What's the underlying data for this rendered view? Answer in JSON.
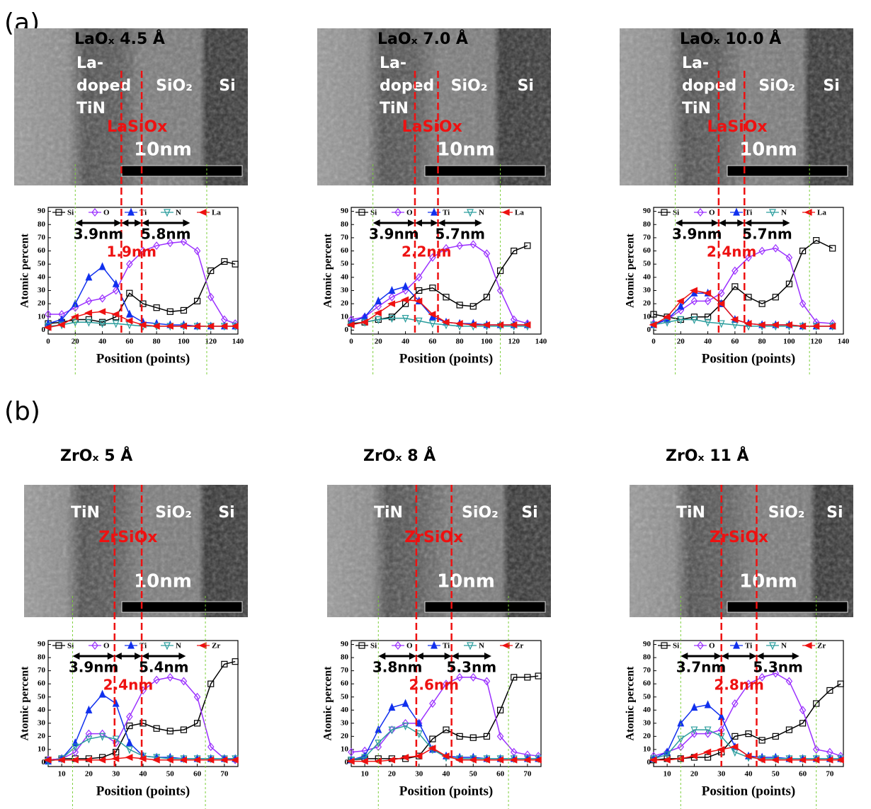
{
  "panels": [
    "(a)",
    "(b)"
  ],
  "chart_data": [
    {
      "type": "line",
      "title": "LaOₓ 4.5 Å",
      "xlabel": "Position (points)",
      "ylabel": "Atomic percent",
      "xlim": [
        0,
        140
      ],
      "xticks": [
        0,
        20,
        40,
        60,
        80,
        100,
        120,
        140
      ],
      "ylim": [
        -3,
        93
      ],
      "yticks": [
        0,
        10,
        20,
        30,
        40,
        50,
        60,
        70,
        80,
        90
      ],
      "image": {
        "metal": [
          "La-",
          "doped",
          "TiN"
        ],
        "oxide": "SiO₂",
        "substrate": "Si",
        "interlayer": "LaSiOx",
        "scale_bar": "10nm"
      },
      "interface_lines": [
        54,
        69
      ],
      "region_lines": [
        20,
        117
      ],
      "dims": [
        "3.9nm",
        "5.8nm"
      ],
      "interlayer_thickness": "1.9nm",
      "x": [
        0,
        10,
        20,
        30,
        40,
        50,
        60,
        70,
        80,
        90,
        100,
        110,
        120,
        130,
        138
      ],
      "series": [
        {
          "name": "Si",
          "color": "#000000",
          "marker": "square",
          "values": [
            5,
            6,
            8,
            8,
            6,
            10,
            28,
            20,
            17,
            14,
            15,
            22,
            45,
            52,
            50
          ]
        },
        {
          "name": "O",
          "color": "#9b30ff",
          "marker": "diamond",
          "values": [
            12,
            12,
            17,
            22,
            24,
            30,
            50,
            60,
            64,
            66,
            67,
            60,
            25,
            8,
            5
          ]
        },
        {
          "name": "Ti",
          "color": "#1030ee",
          "marker": "triangle-up",
          "values": [
            5,
            8,
            20,
            40,
            48,
            35,
            12,
            6,
            5,
            4,
            4,
            3,
            3,
            3,
            3
          ]
        },
        {
          "name": "N",
          "color": "#2a9d9d",
          "marker": "triangle-down",
          "values": [
            3,
            4,
            6,
            6,
            5,
            5,
            4,
            3,
            3,
            3,
            3,
            3,
            3,
            3,
            3
          ]
        },
        {
          "name": "La",
          "color": "#ee1111",
          "marker": "triangle-left",
          "values": [
            2,
            4,
            10,
            13,
            14,
            12,
            7,
            4,
            3,
            3,
            3,
            3,
            3,
            3,
            3
          ]
        }
      ]
    },
    {
      "type": "line",
      "title": "LaOₓ 7.0 Å",
      "xlabel": "Position (points)",
      "ylabel": "Atomic percent",
      "xlim": [
        0,
        140
      ],
      "xticks": [
        0,
        20,
        40,
        60,
        80,
        100,
        120,
        140
      ],
      "ylim": [
        -3,
        93
      ],
      "yticks": [
        0,
        10,
        20,
        30,
        40,
        50,
        60,
        70,
        80,
        90
      ],
      "image": {
        "metal": [
          "La-",
          "doped",
          "TiN"
        ],
        "oxide": "SiO₂",
        "substrate": "Si",
        "interlayer": "LaSiOx",
        "scale_bar": "10nm"
      },
      "interface_lines": [
        47,
        64
      ],
      "region_lines": [
        16,
        110
      ],
      "dims": [
        "3.9nm",
        "5.7nm"
      ],
      "interlayer_thickness": "2.2nm",
      "x": [
        0,
        10,
        20,
        30,
        40,
        50,
        60,
        70,
        80,
        90,
        100,
        110,
        120,
        130
      ],
      "series": [
        {
          "name": "Si",
          "color": "#000000",
          "marker": "square",
          "values": [
            5,
            6,
            8,
            10,
            20,
            30,
            32,
            25,
            19,
            18,
            25,
            45,
            60,
            64
          ]
        },
        {
          "name": "O",
          "color": "#9b30ff",
          "marker": "diamond",
          "values": [
            8,
            10,
            18,
            25,
            30,
            40,
            55,
            62,
            64,
            65,
            58,
            30,
            8,
            5
          ]
        },
        {
          "name": "Ti",
          "color": "#1030ee",
          "marker": "triangle-up",
          "values": [
            6,
            10,
            22,
            30,
            33,
            22,
            10,
            6,
            5,
            5,
            4,
            4,
            4,
            4
          ]
        },
        {
          "name": "N",
          "color": "#2a9d9d",
          "marker": "triangle-down",
          "values": [
            4,
            6,
            8,
            9,
            9,
            7,
            5,
            4,
            3,
            3,
            3,
            3,
            3,
            3
          ]
        },
        {
          "name": "La",
          "color": "#ee1111",
          "marker": "triangle-left",
          "values": [
            4,
            6,
            13,
            20,
            23,
            22,
            12,
            6,
            5,
            4,
            4,
            4,
            4,
            4
          ]
        }
      ]
    },
    {
      "type": "line",
      "title": "LaOₓ 10.0 Å",
      "xlabel": "Position (points)",
      "ylabel": "Atomic percent",
      "xlim": [
        0,
        140
      ],
      "xticks": [
        0,
        20,
        40,
        60,
        80,
        100,
        120,
        140
      ],
      "ylim": [
        -3,
        93
      ],
      "yticks": [
        0,
        10,
        20,
        30,
        40,
        50,
        60,
        70,
        80,
        90
      ],
      "image": {
        "metal": [
          "La-",
          "doped",
          "TiN"
        ],
        "oxide": "SiO₂",
        "substrate": "Si",
        "interlayer": "LaSiOx",
        "scale_bar": "10nm"
      },
      "interface_lines": [
        48,
        67
      ],
      "region_lines": [
        16,
        115
      ],
      "dims": [
        "3.9nm",
        "5.7nm"
      ],
      "interlayer_thickness": "2.4nm",
      "x": [
        0,
        10,
        20,
        30,
        40,
        50,
        60,
        70,
        80,
        90,
        100,
        110,
        120,
        132
      ],
      "series": [
        {
          "name": "Si",
          "color": "#000000",
          "marker": "square",
          "values": [
            12,
            10,
            8,
            10,
            10,
            20,
            33,
            25,
            20,
            25,
            35,
            60,
            68,
            62
          ]
        },
        {
          "name": "O",
          "color": "#9b30ff",
          "marker": "diamond",
          "values": [
            5,
            8,
            15,
            22,
            22,
            28,
            45,
            55,
            60,
            62,
            55,
            20,
            6,
            5
          ]
        },
        {
          "name": "Ti",
          "color": "#1030ee",
          "marker": "triangle-up",
          "values": [
            4,
            8,
            18,
            28,
            28,
            20,
            8,
            5,
            4,
            4,
            4,
            3,
            3,
            3
          ]
        },
        {
          "name": "N",
          "color": "#2a9d9d",
          "marker": "triangle-down",
          "values": [
            4,
            6,
            8,
            8,
            6,
            5,
            4,
            3,
            3,
            3,
            3,
            3,
            3,
            3
          ]
        },
        {
          "name": "La",
          "color": "#ee1111",
          "marker": "triangle-left",
          "values": [
            4,
            10,
            22,
            30,
            28,
            20,
            8,
            5,
            4,
            4,
            4,
            3,
            3,
            3
          ]
        }
      ]
    },
    {
      "type": "line",
      "title": "ZrOₓ 5 Å",
      "xlabel": "Position (points)",
      "ylabel": "Atomic percent",
      "xlim": [
        5,
        75
      ],
      "xticks": [
        10,
        20,
        30,
        40,
        50,
        60,
        70
      ],
      "ylim": [
        -3,
        93
      ],
      "yticks": [
        0,
        10,
        20,
        30,
        40,
        50,
        60,
        70,
        80,
        90
      ],
      "image": {
        "metal": [
          "TiN"
        ],
        "oxide": "SiO₂",
        "substrate": "Si",
        "interlayer": "ZrSiOx",
        "scale_bar": "10nm"
      },
      "interface_lines": [
        29.5,
        39.5
      ],
      "region_lines": [
        14,
        63
      ],
      "dims": [
        "3.9nm",
        "5.4nm"
      ],
      "interlayer_thickness": "2.4nm",
      "x": [
        5,
        10,
        15,
        20,
        25,
        30,
        35,
        40,
        45,
        50,
        55,
        60,
        65,
        70,
        74
      ],
      "series": [
        {
          "name": "Si",
          "color": "#000000",
          "marker": "square",
          "values": [
            2,
            3,
            3,
            3,
            4,
            8,
            28,
            30,
            26,
            24,
            25,
            30,
            60,
            75,
            77
          ]
        },
        {
          "name": "O",
          "color": "#9b30ff",
          "marker": "diamond",
          "values": [
            2,
            3,
            8,
            22,
            22,
            15,
            35,
            55,
            63,
            65,
            62,
            50,
            12,
            3,
            2
          ]
        },
        {
          "name": "Ti",
          "color": "#1030ee",
          "marker": "triangle-up",
          "values": [
            1,
            3,
            15,
            40,
            52,
            45,
            15,
            5,
            4,
            4,
            3,
            3,
            3,
            3,
            3
          ]
        },
        {
          "name": "N",
          "color": "#2a9d9d",
          "marker": "triangle-down",
          "values": [
            1,
            3,
            12,
            18,
            20,
            18,
            10,
            5,
            4,
            3,
            3,
            3,
            3,
            3,
            3
          ]
        },
        {
          "name": "Zr",
          "color": "#ee1111",
          "marker": "triangle-left",
          "values": [
            2,
            2,
            2,
            2,
            2,
            3,
            4,
            3,
            2,
            2,
            2,
            2,
            2,
            2,
            2
          ]
        }
      ]
    },
    {
      "type": "line",
      "title": "ZrOₓ 8 Å",
      "xlabel": "Position (points)",
      "ylabel": "Atomic percent",
      "xlim": [
        5,
        75
      ],
      "xticks": [
        10,
        20,
        30,
        40,
        50,
        60,
        70
      ],
      "ylim": [
        -3,
        93
      ],
      "yticks": [
        0,
        10,
        20,
        30,
        40,
        50,
        60,
        70,
        80,
        90
      ],
      "image": {
        "metal": [
          "TiN"
        ],
        "oxide": "SiO₂",
        "substrate": "Si",
        "interlayer": "ZrSiOx",
        "scale_bar": "10nm"
      },
      "interface_lines": [
        29,
        42
      ],
      "region_lines": [
        15,
        63
      ],
      "dims": [
        "3.8nm",
        "5.3nm"
      ],
      "interlayer_thickness": "2.6nm",
      "x": [
        5,
        10,
        15,
        20,
        25,
        30,
        35,
        40,
        45,
        50,
        55,
        60,
        65,
        70,
        74
      ],
      "series": [
        {
          "name": "Si",
          "color": "#000000",
          "marker": "square",
          "values": [
            2,
            3,
            3,
            3,
            3,
            5,
            18,
            25,
            20,
            19,
            20,
            40,
            65,
            65,
            66
          ]
        },
        {
          "name": "O",
          "color": "#9b30ff",
          "marker": "diamond",
          "values": [
            8,
            9,
            12,
            25,
            30,
            30,
            45,
            60,
            65,
            65,
            62,
            20,
            8,
            6,
            5
          ]
        },
        {
          "name": "Ti",
          "color": "#1030ee",
          "marker": "triangle-up",
          "values": [
            2,
            5,
            25,
            42,
            45,
            30,
            10,
            5,
            4,
            4,
            3,
            3,
            3,
            3,
            3
          ]
        },
        {
          "name": "N",
          "color": "#2a9d9d",
          "marker": "triangle-down",
          "values": [
            2,
            4,
            15,
            25,
            28,
            22,
            10,
            4,
            3,
            3,
            3,
            3,
            3,
            3,
            3
          ]
        },
        {
          "name": "Zr",
          "color": "#ee1111",
          "marker": "triangle-left",
          "values": [
            1,
            1,
            1,
            2,
            4,
            5,
            11,
            5,
            2,
            2,
            2,
            2,
            2,
            2,
            2
          ]
        }
      ]
    },
    {
      "type": "line",
      "title": "ZrOₓ 11 Å",
      "xlabel": "Position (points)",
      "ylabel": "Atomic percent",
      "xlim": [
        5,
        75
      ],
      "xticks": [
        10,
        20,
        30,
        40,
        50,
        60,
        70
      ],
      "ylim": [
        -3,
        93
      ],
      "yticks": [
        0,
        10,
        20,
        30,
        40,
        50,
        60,
        70,
        80,
        90
      ],
      "image": {
        "metal": [
          "TiN"
        ],
        "oxide": "SiO₂",
        "substrate": "Si",
        "interlayer": "ZrSiOx",
        "scale_bar": "10nm"
      },
      "interface_lines": [
        30,
        43
      ],
      "region_lines": [
        15,
        65
      ],
      "dims": [
        "3.7nm",
        "5.3nm"
      ],
      "interlayer_thickness": "2.8nm",
      "x": [
        5,
        10,
        15,
        20,
        25,
        30,
        35,
        40,
        45,
        50,
        55,
        60,
        65,
        70,
        74
      ],
      "series": [
        {
          "name": "Si",
          "color": "#000000",
          "marker": "square",
          "values": [
            2,
            3,
            3,
            4,
            4,
            8,
            20,
            22,
            17,
            20,
            25,
            30,
            45,
            55,
            60
          ]
        },
        {
          "name": "O",
          "color": "#9b30ff",
          "marker": "diamond",
          "values": [
            5,
            8,
            12,
            22,
            22,
            25,
            45,
            60,
            65,
            68,
            62,
            40,
            10,
            8,
            5
          ]
        },
        {
          "name": "Ti",
          "color": "#1030ee",
          "marker": "triangle-up",
          "values": [
            3,
            8,
            30,
            42,
            44,
            35,
            12,
            5,
            4,
            4,
            3,
            3,
            3,
            3,
            3
          ]
        },
        {
          "name": "N",
          "color": "#2a9d9d",
          "marker": "triangle-down",
          "values": [
            3,
            6,
            18,
            25,
            25,
            20,
            8,
            4,
            3,
            3,
            3,
            3,
            3,
            3,
            3
          ]
        },
        {
          "name": "Zr",
          "color": "#ee1111",
          "marker": "triangle-left",
          "values": [
            2,
            2,
            3,
            5,
            8,
            10,
            12,
            5,
            2,
            2,
            2,
            2,
            2,
            2,
            2
          ]
        }
      ]
    }
  ]
}
